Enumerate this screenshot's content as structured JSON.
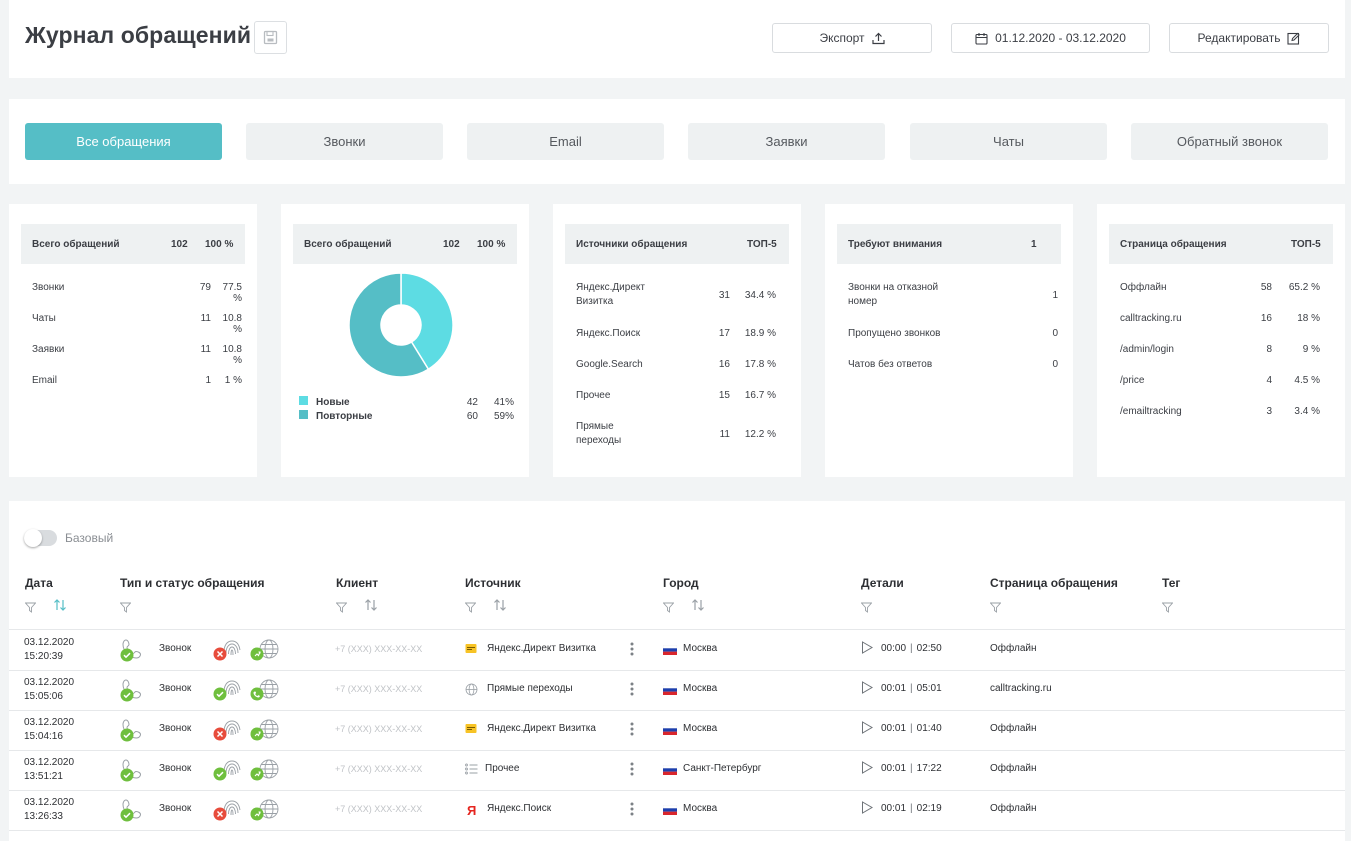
{
  "header": {
    "title": "Журнал обращений",
    "export_label": "Экспорт",
    "date_range": "01.12.2020 - 03.12.2020",
    "edit_label": "Редактировать"
  },
  "tabs": [
    {
      "label": "Все обращения",
      "active": true
    },
    {
      "label": "Звонки"
    },
    {
      "label": "Email"
    },
    {
      "label": "Заявки"
    },
    {
      "label": "Чаты"
    },
    {
      "label": "Обратный звонок"
    }
  ],
  "cards": {
    "total": {
      "title": "Всего обращений",
      "count": "102",
      "pct": "100 %",
      "rows": [
        {
          "label": "Звонки",
          "count": "79",
          "pct": "77.5 %"
        },
        {
          "label": "Чаты",
          "count": "11",
          "pct": "10.8 %"
        },
        {
          "label": "Заявки",
          "count": "11",
          "pct": "10.8 %"
        },
        {
          "label": "Email",
          "count": "1",
          "pct": "1 %"
        }
      ]
    },
    "pie": {
      "title": "Всего обращений",
      "count": "102",
      "pct": "100 %",
      "legend": [
        {
          "label": "Новые",
          "count": "42",
          "pct": "41%",
          "color": "#5ddce3"
        },
        {
          "label": "Повторные",
          "count": "60",
          "pct": "59%",
          "color": "#55bec6"
        }
      ]
    },
    "sources": {
      "title": "Источники обращения",
      "badge": "ТОП-5",
      "rows": [
        {
          "label1": "Яндекс.Директ",
          "label2": "Визитка",
          "count": "31",
          "pct": "34.4 %"
        },
        {
          "label1": "Яндекс.Поиск",
          "label2": "",
          "count": "17",
          "pct": "18.9 %"
        },
        {
          "label1": "Google.Search",
          "label2": "",
          "count": "16",
          "pct": "17.8 %"
        },
        {
          "label1": "Прочее",
          "label2": "",
          "count": "15",
          "pct": "16.7 %"
        },
        {
          "label1": "Прямые",
          "label2": "переходы",
          "count": "11",
          "pct": "12.2 %"
        }
      ]
    },
    "attention": {
      "title": "Требуют внимания",
      "count": "1",
      "rows": [
        {
          "label1": "Звонки на отказной",
          "label2": "номер",
          "count": "1"
        },
        {
          "label1": "Пропущено звонков",
          "label2": "",
          "count": "0"
        },
        {
          "label1": "Чатов без ответов",
          "label2": "",
          "count": "0"
        }
      ]
    },
    "pages": {
      "title": "Страница обращения",
      "badge": "ТОП-5",
      "rows": [
        {
          "label": "Оффлайн",
          "count": "58",
          "pct": "65.2 %"
        },
        {
          "label": "calltracking.ru",
          "count": "16",
          "pct": "18 %"
        },
        {
          "label": "/admin/login",
          "count": "8",
          "pct": "9 %"
        },
        {
          "label": "/price",
          "count": "4",
          "pct": "4.5 %"
        },
        {
          "label": "/emailtracking",
          "count": "3",
          "pct": "3.4 %"
        }
      ]
    }
  },
  "chart_data": {
    "type": "pie",
    "categories": [
      "Новые",
      "Повторные"
    ],
    "values": [
      42,
      60
    ],
    "colors": [
      "#5ddce3",
      "#55bec6"
    ]
  },
  "table": {
    "toggle_label": "Базовый",
    "columns": {
      "date": "Дата",
      "type": "Тип и статус обращения",
      "client": "Клиент",
      "source": "Источник",
      "city": "Город",
      "details": "Детали",
      "page": "Страница обращения",
      "tag": "Тег"
    },
    "rows": [
      {
        "date": "03.12.2020",
        "time": "15:20:39",
        "type": "Звонок",
        "phone": "+7 (XXX) XXX-XX-XX",
        "source": "Яндекс.Директ Визитка",
        "source_icon": "yandex-direct-icon",
        "city": "Москва",
        "wait": "00:00",
        "talk": "02:50",
        "page": "Оффлайн",
        "finger_ok": false
      },
      {
        "date": "03.12.2020",
        "time": "15:05:06",
        "type": "Звонок",
        "phone": "+7 (XXX) XXX-XX-XX",
        "source": "Прямые переходы",
        "source_icon": "globe-icon",
        "city": "Москва",
        "wait": "00:01",
        "talk": "05:01",
        "page": "calltracking.ru",
        "finger_ok": true
      },
      {
        "date": "03.12.2020",
        "time": "15:04:16",
        "type": "Звонок",
        "phone": "+7 (XXX) XXX-XX-XX",
        "source": "Яндекс.Директ Визитка",
        "source_icon": "yandex-direct-icon",
        "city": "Москва",
        "wait": "00:01",
        "talk": "01:40",
        "page": "Оффлайн",
        "finger_ok": false
      },
      {
        "date": "03.12.2020",
        "time": "13:51:21",
        "type": "Звонок",
        "phone": "+7 (XXX) XXX-XX-XX",
        "source": "Прочее",
        "source_icon": "list-icon",
        "city": "Санкт-Петербург",
        "wait": "00:01",
        "talk": "17:22",
        "page": "Оффлайн",
        "finger_ok": true
      },
      {
        "date": "03.12.2020",
        "time": "13:26:33",
        "type": "Звонок",
        "phone": "+7 (XXX) XXX-XX-XX",
        "source": "Яндекс.Поиск",
        "source_icon": "yandex-icon",
        "city": "Москва",
        "wait": "00:01",
        "talk": "02:19",
        "page": "Оффлайн",
        "finger_ok": false
      }
    ]
  },
  "colors": {
    "accent": "#55bec6",
    "ok": "#6fbf3e",
    "error": "#e74c3c"
  }
}
